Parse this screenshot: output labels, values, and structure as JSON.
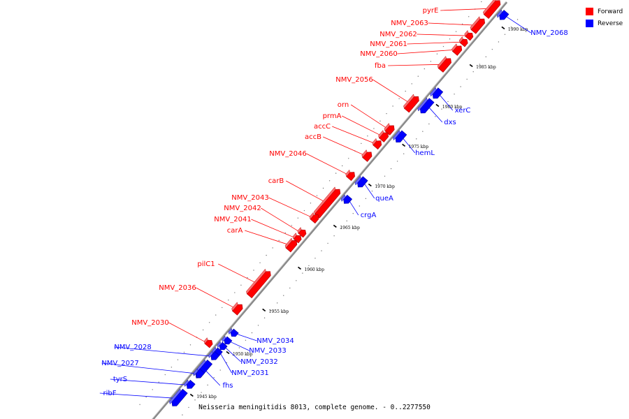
{
  "legend": {
    "forward": {
      "label": "Forward",
      "color": "#ff0000"
    },
    "reverse": {
      "label": "Reverse",
      "color": "#0000ff"
    }
  },
  "caption": "Neisseria meningitidis 8013, complete genome. - 0..2277550",
  "ticks": [
    "1945 kbp",
    "1950 kbp",
    "1955 kbp",
    "1960 kbp",
    "1965 kbp",
    "1970 kbp",
    "1975 kbp",
    "1980 kbp",
    "1985 kbp",
    "1990 kbp"
  ],
  "genes": [
    {
      "name": "pyrE",
      "strand": "forward"
    },
    {
      "name": "NMV_2063",
      "strand": "forward"
    },
    {
      "name": "NMV_2062",
      "strand": "forward"
    },
    {
      "name": "NMV_2061",
      "strand": "forward"
    },
    {
      "name": "NMV_2060",
      "strand": "forward"
    },
    {
      "name": "fba",
      "strand": "forward"
    },
    {
      "name": "NMV_2056",
      "strand": "forward"
    },
    {
      "name": "orn",
      "strand": "forward"
    },
    {
      "name": "prmA",
      "strand": "forward"
    },
    {
      "name": "accC",
      "strand": "forward"
    },
    {
      "name": "accB",
      "strand": "forward"
    },
    {
      "name": "NMV_2046",
      "strand": "forward"
    },
    {
      "name": "carB",
      "strand": "forward"
    },
    {
      "name": "NMV_2043",
      "strand": "forward"
    },
    {
      "name": "NMV_2042",
      "strand": "forward"
    },
    {
      "name": "NMV_2041",
      "strand": "forward"
    },
    {
      "name": "carA",
      "strand": "forward"
    },
    {
      "name": "pilC1",
      "strand": "forward"
    },
    {
      "name": "NMV_2036",
      "strand": "forward"
    },
    {
      "name": "NMV_2030",
      "strand": "forward"
    },
    {
      "name": "NMV_2068",
      "strand": "reverse"
    },
    {
      "name": "xerC",
      "strand": "reverse"
    },
    {
      "name": "dxs",
      "strand": "reverse"
    },
    {
      "name": "hemL",
      "strand": "reverse"
    },
    {
      "name": "queA",
      "strand": "reverse"
    },
    {
      "name": "crgA",
      "strand": "reverse"
    },
    {
      "name": "NMV_2034",
      "strand": "reverse"
    },
    {
      "name": "NMV_2033",
      "strand": "reverse"
    },
    {
      "name": "NMV_2032",
      "strand": "reverse"
    },
    {
      "name": "NMV_2031",
      "strand": "reverse"
    },
    {
      "name": "fhs",
      "strand": "reverse"
    },
    {
      "name": "NMV_2028",
      "strand": "reverse"
    },
    {
      "name": "NMV_2027",
      "strand": "reverse"
    },
    {
      "name": "tyrS",
      "strand": "reverse"
    },
    {
      "name": "ribF",
      "strand": "reverse"
    }
  ]
}
